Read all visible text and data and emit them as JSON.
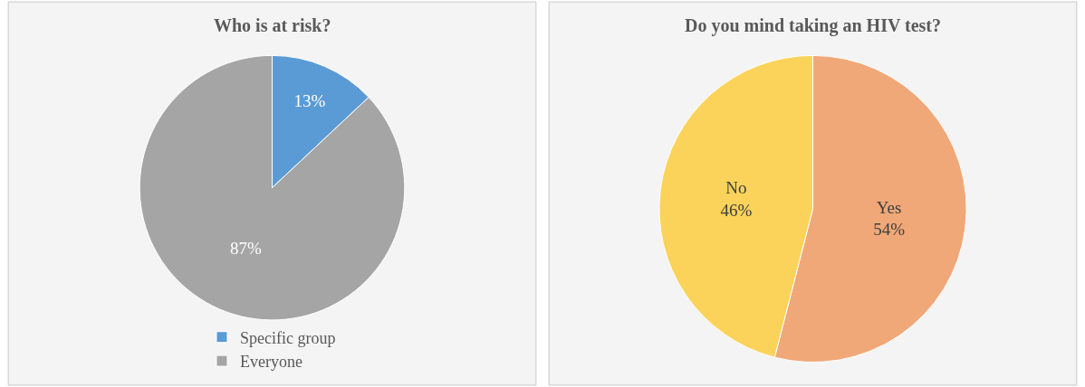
{
  "chart_data": [
    {
      "type": "pie",
      "title": "Who is at risk?",
      "categories": [
        "Specific group",
        "Everyone"
      ],
      "values": [
        13,
        87
      ],
      "colors": [
        "#5b9bd5",
        "#a5a5a5"
      ],
      "value_labels": [
        "13%",
        "87%"
      ],
      "legend": "bottom"
    },
    {
      "type": "pie",
      "title": "Do you mind taking an HIV test?",
      "categories": [
        "Yes",
        "No"
      ],
      "values": [
        54,
        46
      ],
      "colors": [
        "#f0a878",
        "#fbd35a"
      ],
      "value_labels": [
        "54%",
        "46%"
      ],
      "legend": false
    }
  ]
}
